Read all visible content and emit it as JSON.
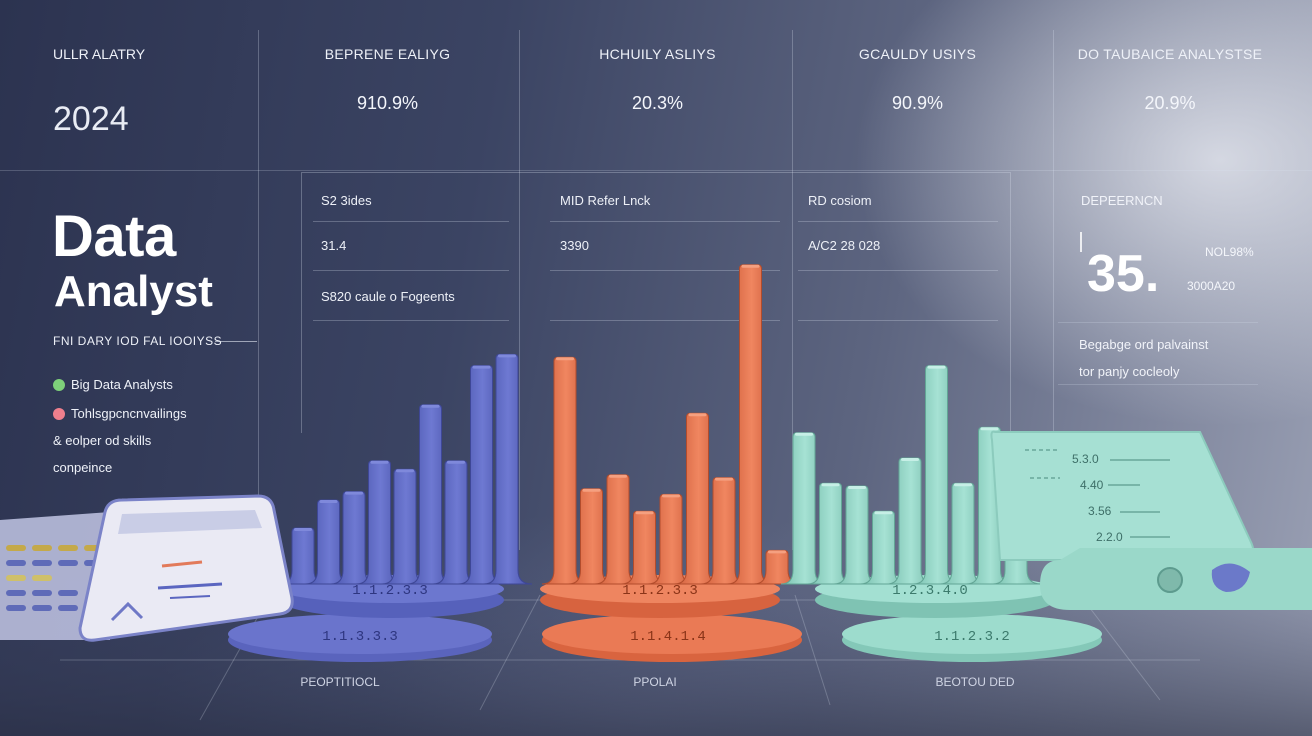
{
  "header": {
    "topleft": "ULLR ALATRY",
    "year": "2024",
    "columns": [
      {
        "label": "BEPRENE EALIYG",
        "value": "910.9%"
      },
      {
        "label": "HCHUILY ASLIYS",
        "value": "20.3%"
      },
      {
        "label": "GCAULDY USIYS",
        "value": "90.9%"
      },
      {
        "label": "DO TAUBAICE ANALYSTSE",
        "value": "20.9%"
      }
    ]
  },
  "hero": {
    "title_line1": "Data",
    "title_line2": "Analyst",
    "subtitle": "FNI DARY IOD FAL IOOIYSS",
    "legend": [
      {
        "label": "Big Data Analysts",
        "color": "#7ed07a"
      },
      {
        "label": "Tohlsgpcncnvailings",
        "color": "#ef7f8d"
      },
      {
        "label": "& eolper od skills",
        "color": ""
      },
      {
        "label": "conpeince",
        "color": ""
      }
    ]
  },
  "panels": [
    {
      "title": "S2 3ides",
      "line2": "31.4",
      "line3": "S820 caule o Fogeents"
    },
    {
      "title": "MID Refer Lnck",
      "line2": "3390"
    },
    {
      "title": "RD cosiom",
      "line2": "A/C2 28 028"
    }
  ],
  "right_panel": {
    "title": "DEPEERNCN",
    "big_number": "35.",
    "small1": "NOL98%",
    "small2": "3000A20",
    "desc1": "Begabge ord palvainst",
    "desc2": "tor panjy cocleoly"
  },
  "scroll": {
    "lines": [
      "5.3.0",
      "4.40",
      "3.56",
      "2.2.0"
    ]
  },
  "bases": {
    "blue_top": "1.1.2.3.3",
    "blue_bottom": "1.1.3.3.3",
    "orange_top": "1.1.2.3.3",
    "orange_bottom": "1.1.4.1.4",
    "teal_top": "1.2.3.4.0",
    "teal_bottom": "1.1.2.3.2"
  },
  "bottom_labels": [
    "PEOPTITIOCL",
    "PPOLAI",
    "BEOTOU DED"
  ],
  "colors": {
    "blue": "#5b66c0",
    "orange": "#e2714b",
    "teal": "#8fd4c4"
  },
  "chart_data": [
    {
      "type": "bar",
      "series": [
        {
          "values": [
            2,
            3,
            3.3,
            4.4,
            4.1,
            6.4,
            4.4,
            7.8,
            8.2
          ]
        }
      ]
    },
    {
      "type": "bar",
      "series": [
        {
          "values": [
            8.1,
            3.4,
            3.9,
            2.6,
            3.2,
            6.1,
            3.8,
            11.4,
            1.2
          ]
        }
      ]
    },
    {
      "type": "bar",
      "series": [
        {
          "values": [
            5.4,
            3.6,
            3.5,
            2.6,
            4.5,
            7.8,
            3.6,
            5.6,
            2.3
          ]
        }
      ]
    }
  ]
}
